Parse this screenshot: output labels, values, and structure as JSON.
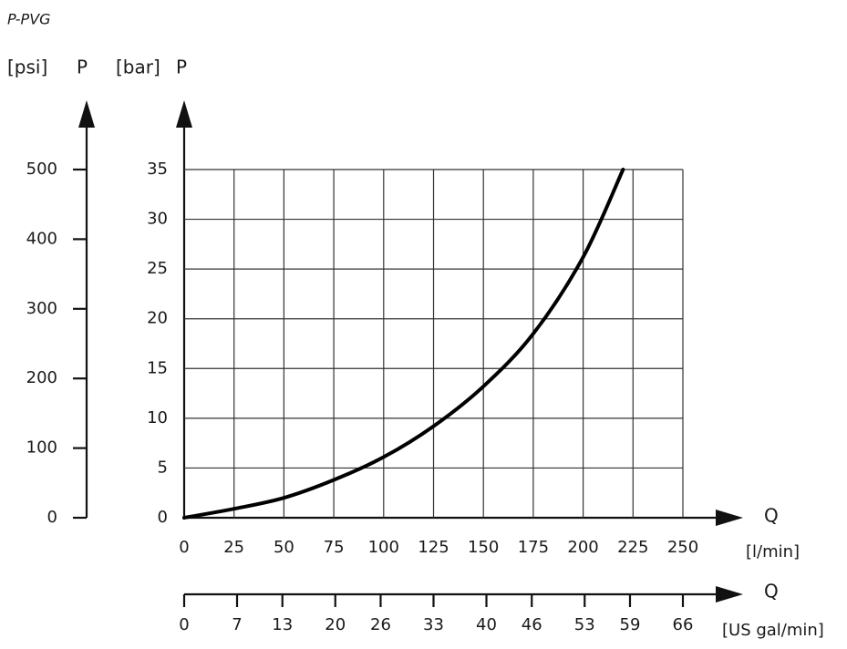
{
  "chart_data": {
    "type": "line",
    "title": "P-PVG",
    "x": [
      0,
      25,
      50,
      75,
      100,
      125,
      150,
      175,
      200,
      220
    ],
    "series": [
      {
        "color": "#000000",
        "values": [
          0,
          0.9,
          2.0,
          3.8,
          6.1,
          9.2,
          13.2,
          18.5,
          26.2,
          35
        ]
      }
    ],
    "xlim": [
      0,
      250
    ],
    "xticks": [
      0,
      25,
      50,
      75,
      100,
      125,
      150,
      175,
      200,
      225,
      250
    ],
    "x_label": "Q",
    "x_unit": "[l/min]",
    "ylim": [
      0,
      35
    ],
    "yticks": [
      0,
      5,
      10,
      15,
      20,
      25,
      30,
      35
    ],
    "y_label": "P",
    "y_unit": "[bar]",
    "y2lim": [
      0,
      500
    ],
    "y2ticks": [
      0,
      100,
      200,
      300,
      400,
      500
    ],
    "y2_label": "P",
    "y2_unit": "[psi]",
    "x2lim": [
      0,
      66
    ],
    "x2ticks": [
      0,
      7,
      13,
      20,
      26,
      33,
      40,
      46,
      53,
      59,
      66
    ],
    "x2_label": "Q",
    "x2_unit": "[US gal/min]",
    "grid": true
  }
}
